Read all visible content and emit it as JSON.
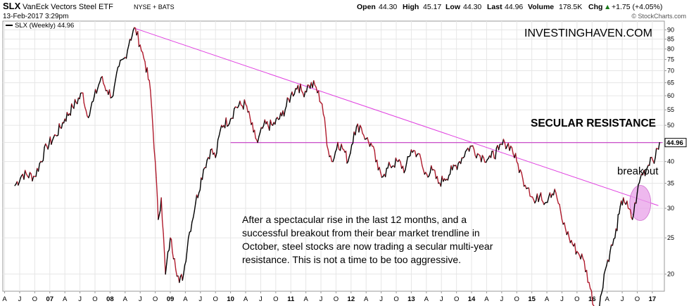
{
  "header": {
    "symbol": "SLX",
    "name": "VanEck Vectors Steel ETF",
    "exchange": "NYSE + BATS",
    "date": "13-Feb-2017 3:29pm",
    "open_label": "Open",
    "open": "44.30",
    "high_label": "High",
    "high": "45.17",
    "low_label": "Low",
    "low": "44.30",
    "last_label": "Last",
    "last": "44.96",
    "volume_label": "Volume",
    "volume": "178.5K",
    "chg_label": "Chg",
    "chg": "+1.75 (+4.05%)",
    "chg_arrow": "▲",
    "copyright": "© StockCharts.com"
  },
  "legend_label": "SLX (Weekly) 44.96",
  "watermark": "INVESTINGHAVEN.COM",
  "annotations": {
    "resistance": "SECULAR RESISTANCE",
    "breakout": "breakout",
    "commentary": [
      "After a spectacular rise in the last 12 months, and a",
      "successful breakout from their bear market trendline in",
      "October, steel stocks are now trading a secular multi-year",
      "resistance. This is not a time to be too aggressive."
    ]
  },
  "price_tag": "44.96",
  "colors": {
    "price_up": "#000000",
    "price_down": "#b01c2e",
    "trendline": "#e040e0",
    "resistance": "#c020c0",
    "highlight": "#e8a0e8",
    "grid": "#e6e6e6"
  },
  "chart_data": {
    "type": "line",
    "title": "SLX (Weekly)",
    "yscale": "log",
    "ylim": [
      18,
      95
    ],
    "yticks": [
      20,
      25,
      30,
      35,
      40,
      45,
      50,
      55,
      60,
      65,
      70,
      75,
      80,
      85,
      90
    ],
    "xlim": [
      2006.22,
      2017.2
    ],
    "xticks": [
      {
        "t": 2006.25,
        "label": "A"
      },
      {
        "t": 2006.5,
        "label": "J"
      },
      {
        "t": 2006.75,
        "label": "O"
      },
      {
        "t": 2007.0,
        "label": "07",
        "bold": true
      },
      {
        "t": 2007.25,
        "label": "A"
      },
      {
        "t": 2007.5,
        "label": "J"
      },
      {
        "t": 2007.75,
        "label": "O"
      },
      {
        "t": 2008.0,
        "label": "08",
        "bold": true
      },
      {
        "t": 2008.25,
        "label": "A"
      },
      {
        "t": 2008.5,
        "label": "J"
      },
      {
        "t": 2008.75,
        "label": "O"
      },
      {
        "t": 2009.0,
        "label": "09",
        "bold": true
      },
      {
        "t": 2009.25,
        "label": "A"
      },
      {
        "t": 2009.5,
        "label": "J"
      },
      {
        "t": 2009.75,
        "label": "O"
      },
      {
        "t": 2010.0,
        "label": "10",
        "bold": true
      },
      {
        "t": 2010.25,
        "label": "A"
      },
      {
        "t": 2010.5,
        "label": "J"
      },
      {
        "t": 2010.75,
        "label": "O"
      },
      {
        "t": 2011.0,
        "label": "11",
        "bold": true
      },
      {
        "t": 2011.25,
        "label": "A"
      },
      {
        "t": 2011.5,
        "label": "J"
      },
      {
        "t": 2011.75,
        "label": "O"
      },
      {
        "t": 2012.0,
        "label": "12",
        "bold": true
      },
      {
        "t": 2012.25,
        "label": "A"
      },
      {
        "t": 2012.5,
        "label": "J"
      },
      {
        "t": 2012.75,
        "label": "O"
      },
      {
        "t": 2013.0,
        "label": "13",
        "bold": true
      },
      {
        "t": 2013.25,
        "label": "A"
      },
      {
        "t": 2013.5,
        "label": "J"
      },
      {
        "t": 2013.75,
        "label": "O"
      },
      {
        "t": 2014.0,
        "label": "14",
        "bold": true
      },
      {
        "t": 2014.25,
        "label": "A"
      },
      {
        "t": 2014.5,
        "label": "J"
      },
      {
        "t": 2014.75,
        "label": "O"
      },
      {
        "t": 2015.0,
        "label": "15",
        "bold": true
      },
      {
        "t": 2015.25,
        "label": "A"
      },
      {
        "t": 2015.5,
        "label": "J"
      },
      {
        "t": 2015.75,
        "label": "O"
      },
      {
        "t": 2016.0,
        "label": "16",
        "bold": true
      },
      {
        "t": 2016.25,
        "label": "A"
      },
      {
        "t": 2016.5,
        "label": "J"
      },
      {
        "t": 2016.75,
        "label": "O"
      },
      {
        "t": 2017.0,
        "label": "17",
        "bold": true
      }
    ],
    "series": [
      {
        "name": "SLX (Weekly)",
        "points": [
          [
            2006.42,
            34.5
          ],
          [
            2006.55,
            37.0
          ],
          [
            2006.75,
            36.5
          ],
          [
            2006.95,
            44.0
          ],
          [
            2007.1,
            47.0
          ],
          [
            2007.25,
            52.0
          ],
          [
            2007.38,
            56.0
          ],
          [
            2007.55,
            61.0
          ],
          [
            2007.62,
            53.0
          ],
          [
            2007.72,
            58.0
          ],
          [
            2007.85,
            67.0
          ],
          [
            2007.95,
            62.0
          ],
          [
            2008.05,
            60.0
          ],
          [
            2008.15,
            72.0
          ],
          [
            2008.25,
            76.0
          ],
          [
            2008.33,
            85.0
          ],
          [
            2008.42,
            91.0
          ],
          [
            2008.5,
            82.0
          ],
          [
            2008.58,
            74.0
          ],
          [
            2008.67,
            62.0
          ],
          [
            2008.75,
            40.0
          ],
          [
            2008.8,
            28.0
          ],
          [
            2008.85,
            32.0
          ],
          [
            2008.92,
            20.0
          ],
          [
            2009.0,
            25.0
          ],
          [
            2009.07,
            22.0
          ],
          [
            2009.15,
            19.0
          ],
          [
            2009.22,
            20.0
          ],
          [
            2009.3,
            25.0
          ],
          [
            2009.42,
            31.0
          ],
          [
            2009.55,
            38.0
          ],
          [
            2009.67,
            43.0
          ],
          [
            2009.75,
            41.0
          ],
          [
            2009.85,
            50.0
          ],
          [
            2010.0,
            52.0
          ],
          [
            2010.08,
            56.0
          ],
          [
            2010.25,
            57.0
          ],
          [
            2010.38,
            48.0
          ],
          [
            2010.45,
            45.0
          ],
          [
            2010.55,
            50.0
          ],
          [
            2010.7,
            50.0
          ],
          [
            2010.85,
            53.0
          ],
          [
            2011.0,
            60.0
          ],
          [
            2011.12,
            64.0
          ],
          [
            2011.2,
            61.0
          ],
          [
            2011.3,
            64.0
          ],
          [
            2011.4,
            64.0
          ],
          [
            2011.52,
            57.0
          ],
          [
            2011.62,
            43.0
          ],
          [
            2011.7,
            40.0
          ],
          [
            2011.78,
            45.0
          ],
          [
            2011.88,
            43.0
          ],
          [
            2011.95,
            40.0
          ],
          [
            2012.05,
            48.0
          ],
          [
            2012.15,
            50.0
          ],
          [
            2012.25,
            46.0
          ],
          [
            2012.35,
            44.0
          ],
          [
            2012.45,
            38.0
          ],
          [
            2012.55,
            37.0
          ],
          [
            2012.65,
            39.0
          ],
          [
            2012.78,
            40.0
          ],
          [
            2012.9,
            38.0
          ],
          [
            2013.0,
            43.0
          ],
          [
            2013.12,
            42.0
          ],
          [
            2013.22,
            37.0
          ],
          [
            2013.35,
            38.0
          ],
          [
            2013.45,
            35.0
          ],
          [
            2013.55,
            36.0
          ],
          [
            2013.68,
            38.0
          ],
          [
            2013.8,
            40.0
          ],
          [
            2013.92,
            43.0
          ],
          [
            2014.0,
            44.0
          ],
          [
            2014.1,
            42.0
          ],
          [
            2014.2,
            41.0
          ],
          [
            2014.32,
            41.0
          ],
          [
            2014.45,
            43.0
          ],
          [
            2014.55,
            45.0
          ],
          [
            2014.65,
            44.0
          ],
          [
            2014.75,
            40.0
          ],
          [
            2014.85,
            36.0
          ],
          [
            2014.95,
            34.0
          ],
          [
            2015.05,
            31.0
          ],
          [
            2015.15,
            33.0
          ],
          [
            2015.22,
            31.0
          ],
          [
            2015.3,
            33.0
          ],
          [
            2015.4,
            33.0
          ],
          [
            2015.5,
            28.0
          ],
          [
            2015.62,
            25.0
          ],
          [
            2015.75,
            23.0
          ],
          [
            2015.85,
            22.0
          ],
          [
            2015.95,
            19.0
          ],
          [
            2016.05,
            16.0
          ],
          [
            2016.1,
            15.5
          ],
          [
            2016.2,
            20.0
          ],
          [
            2016.3,
            23.0
          ],
          [
            2016.38,
            25.0
          ],
          [
            2016.45,
            29.0
          ],
          [
            2016.52,
            32.0
          ],
          [
            2016.6,
            30.0
          ],
          [
            2016.67,
            28.0
          ],
          [
            2016.75,
            33.0
          ],
          [
            2016.82,
            37.0
          ],
          [
            2016.9,
            38.0
          ],
          [
            2016.97,
            41.0
          ],
          [
            2017.05,
            41.0
          ],
          [
            2017.12,
            44.96
          ]
        ]
      }
    ],
    "trendline": [
      [
        2008.4,
        91.0
      ],
      [
        2017.1,
        30.5
      ]
    ],
    "resistance_level": {
      "value": 44.96,
      "t_start": 2010.0,
      "t_end": 2017.17
    },
    "highlight": {
      "t": 2016.8,
      "value": 31.0
    },
    "last_value": 44.96
  }
}
